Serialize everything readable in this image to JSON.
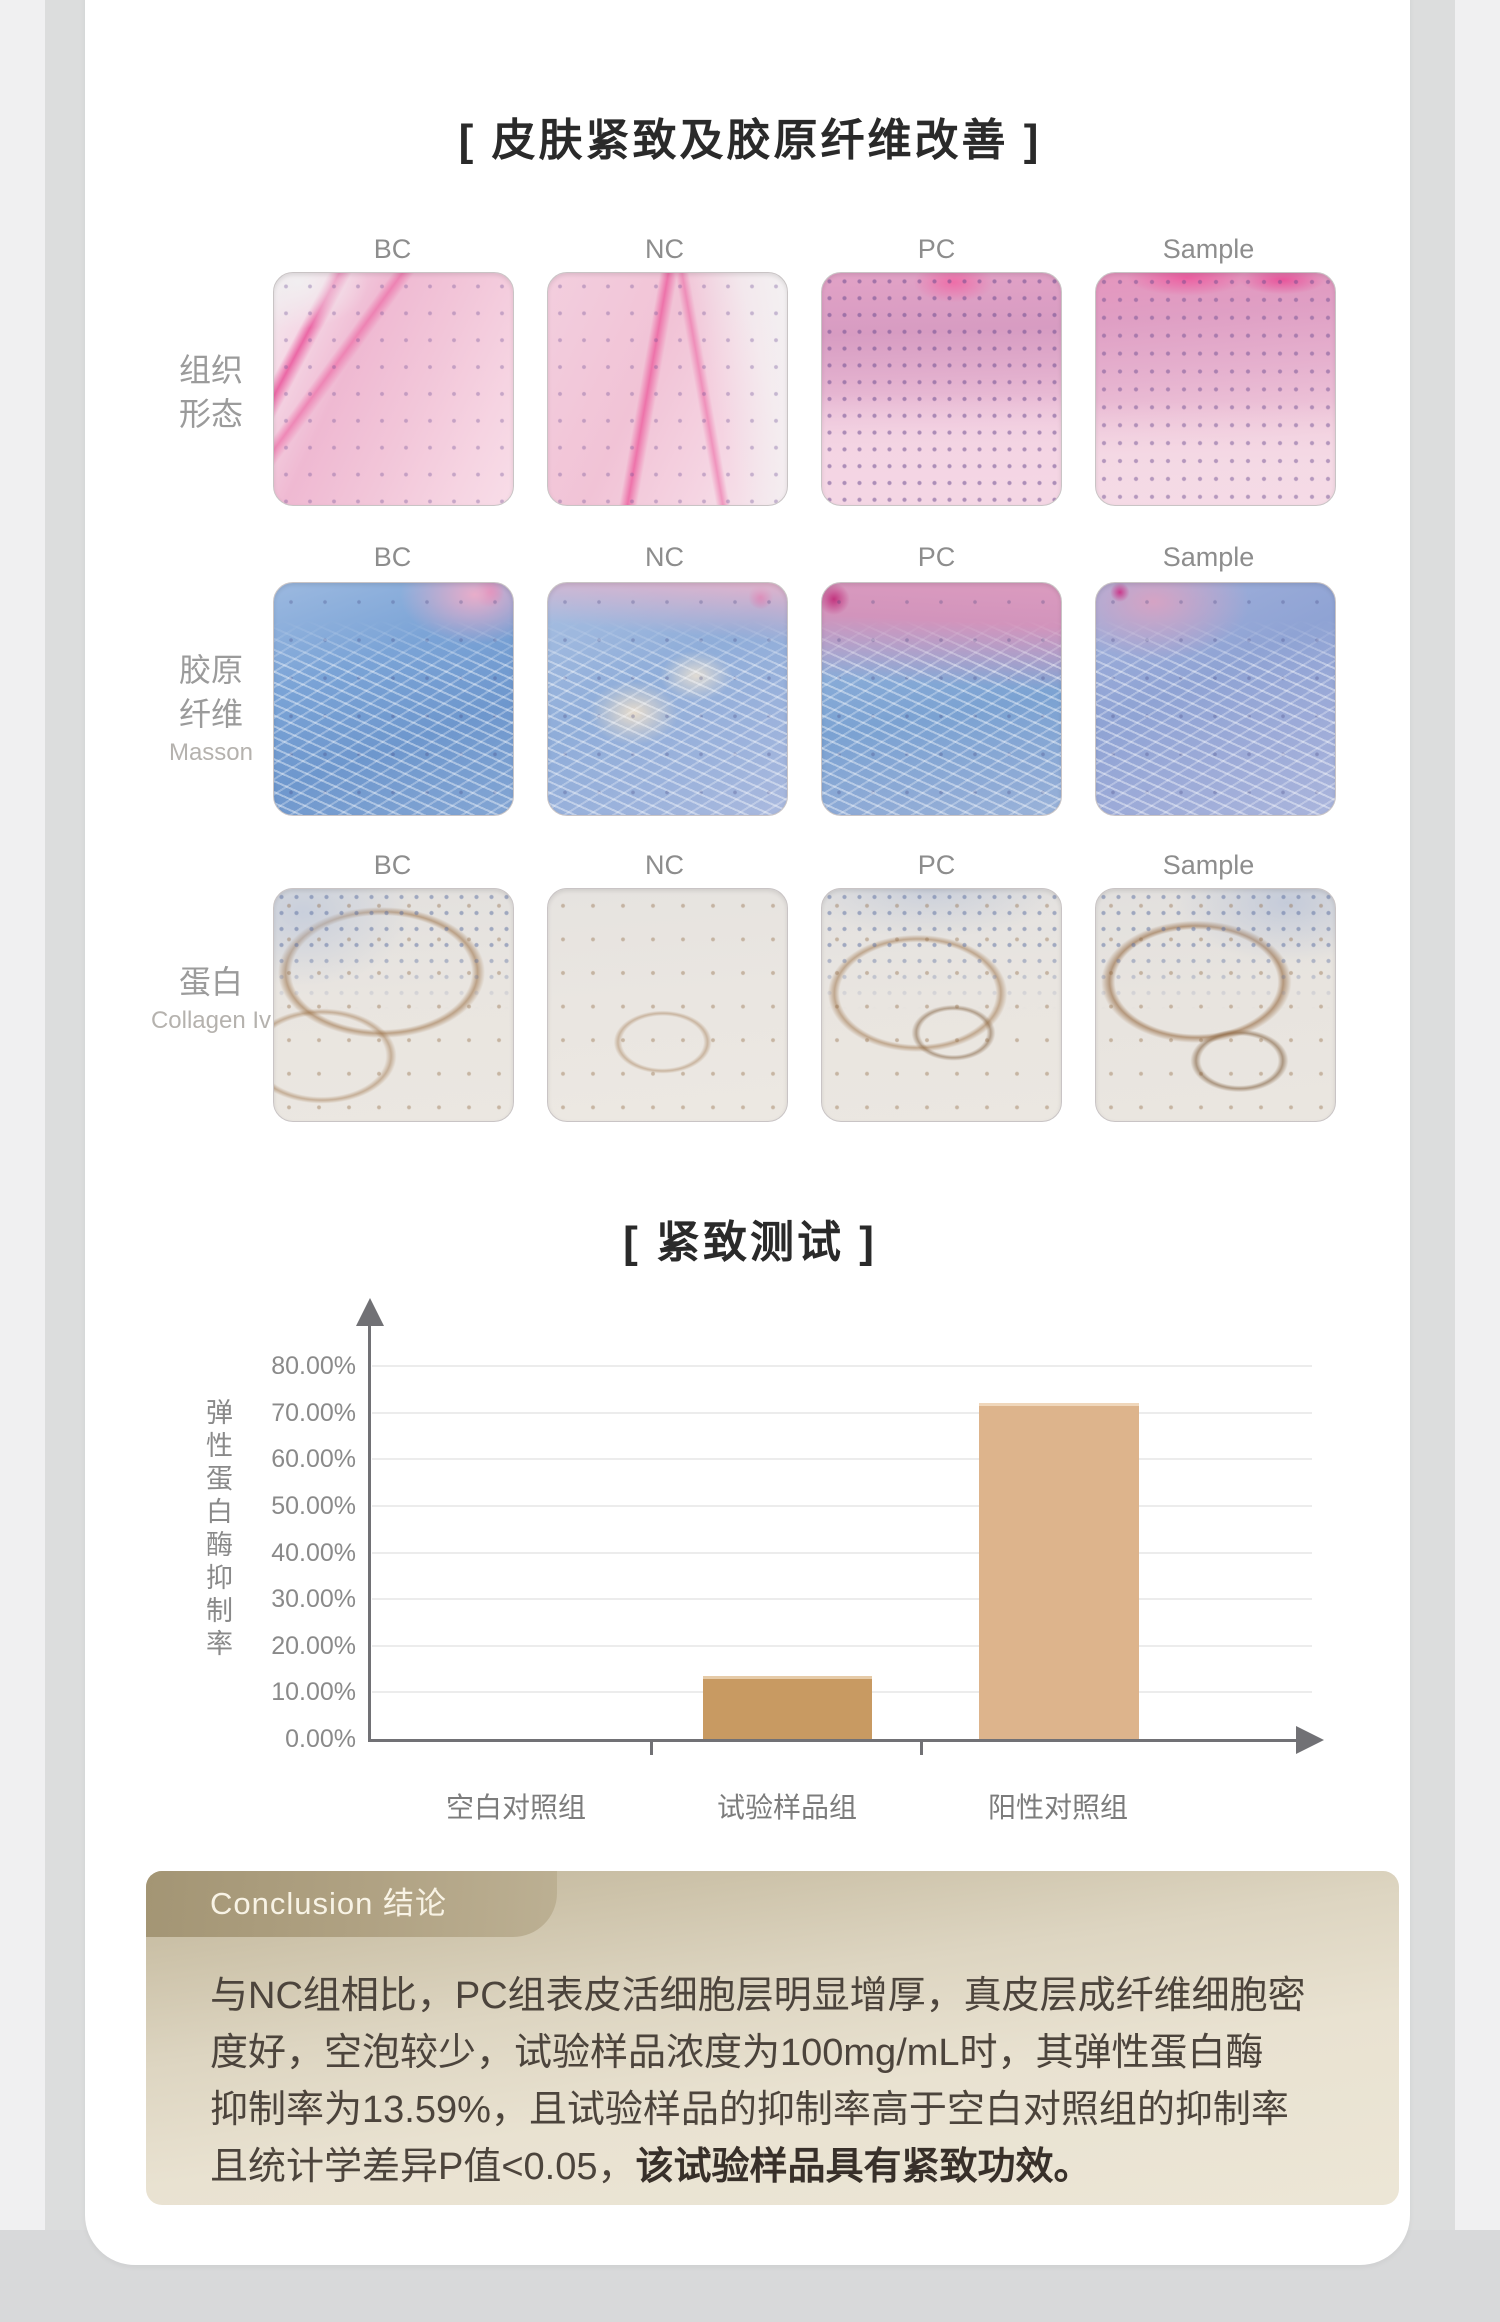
{
  "page": {
    "title": "[ 皮肤紧致及胶原纤维改善 ]"
  },
  "image_section": {
    "rows": [
      {
        "label_lines": [
          "组织",
          "形态"
        ],
        "sublabel": "",
        "columns": [
          "BC",
          "NC",
          "PC",
          "Sample"
        ]
      },
      {
        "label_lines": [
          "胶原",
          "纤维"
        ],
        "sublabel": "Masson",
        "columns": [
          "BC",
          "NC",
          "PC",
          "Sample"
        ]
      },
      {
        "label_lines": [
          "蛋白"
        ],
        "sublabel": "Collagen Iv",
        "columns": [
          "BC",
          "NC",
          "PC",
          "Sample"
        ]
      }
    ]
  },
  "chart": {
    "title": "[ 紧致测试 ]",
    "yticks": [
      "80.00%",
      "70.00%",
      "60.00%",
      "50.00%",
      "40.00%",
      "30.00%",
      "20.00%",
      "10.00%",
      "0.00%"
    ]
  },
  "chart_data": {
    "type": "bar",
    "title": "紧致测试",
    "categories": [
      "空白对照组",
      "试验样品组",
      "阳性对照组"
    ],
    "values": [
      0,
      13.59,
      72
    ],
    "xlabel": "",
    "ylabel": "弹性蛋白酶抑制率",
    "ylim": [
      0,
      80
    ],
    "ytick_step": 10,
    "grid": true,
    "legend": "none",
    "bar_colors": [
      "#c89a62",
      "#c89a62",
      "#ddb48c"
    ]
  },
  "conclusion": {
    "heading": "Conclusion 结论",
    "lines": [
      "与NC组相比，PC组表皮活细胞层明显增厚，真皮层成纤维细胞密",
      "度好，空泡较少，试验样品浓度为100mg/mL时，其弹性蛋白酶",
      "抑制率为13.59%，且试验样品的抑制率高于空白对照组的抑制率"
    ],
    "line4_normal": "且统计学差异P值<0.05，",
    "line4_bold": "该试验样品具有紧致功效。"
  }
}
